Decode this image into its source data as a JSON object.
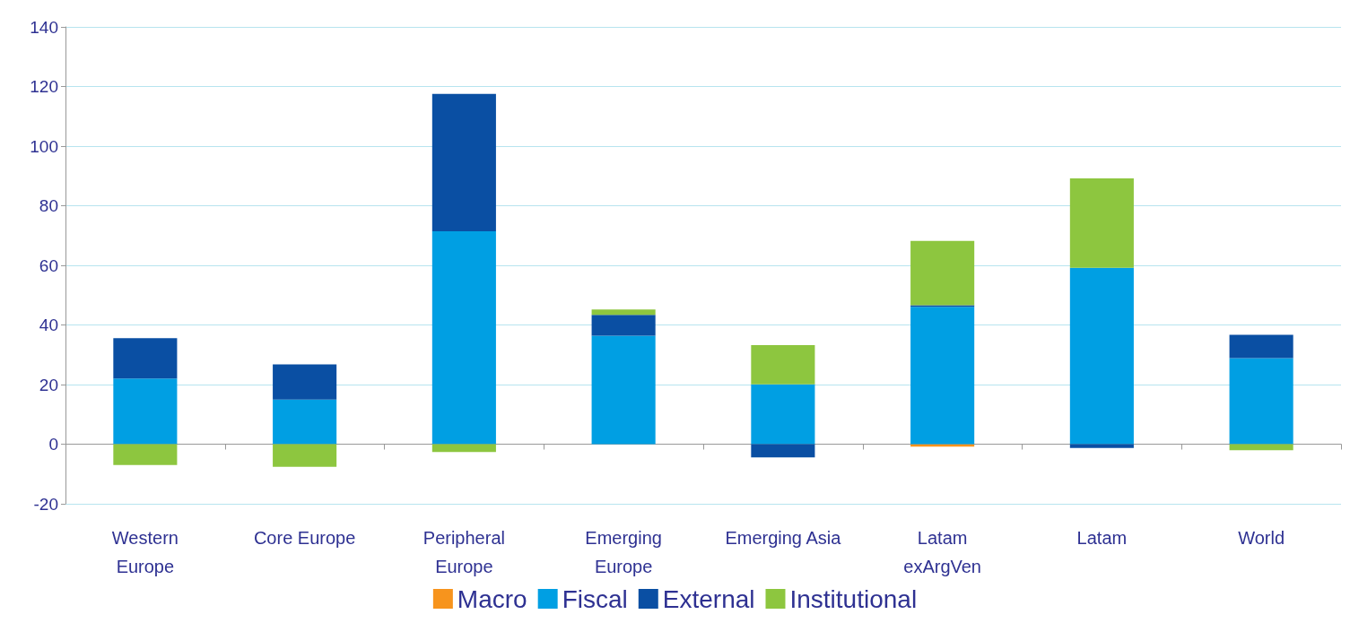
{
  "chart_data": {
    "type": "bar",
    "stacked": true,
    "categories": [
      "Western\nEurope",
      "Core Europe",
      "Peripheral\nEurope",
      "Emerging\nEurope",
      "Emerging Asia",
      "Latam\nexArgVen",
      "Latam",
      "World"
    ],
    "series": [
      {
        "name": "Macro",
        "color": "#f7941d",
        "values": [
          0,
          0,
          0,
          0,
          0,
          -0.8,
          0,
          0
        ]
      },
      {
        "name": "Fiscal",
        "color": "#009fe3",
        "values": [
          22,
          15,
          71.4,
          36.4,
          20.1,
          46.1,
          59.2,
          28.9
        ]
      },
      {
        "name": "External",
        "color": "#0a4fa3",
        "values": [
          13.6,
          11.8,
          46.1,
          7,
          -4.4,
          0.5,
          -1.3,
          7.8
        ]
      },
      {
        "name": "Institutional",
        "color": "#8dc63f",
        "values": [
          -7,
          -7.6,
          -2.6,
          1.8,
          13.1,
          21.6,
          30,
          -2
        ]
      }
    ],
    "ylim": [
      -20,
      140
    ],
    "yticks": [
      -20,
      0,
      20,
      40,
      60,
      80,
      100,
      120,
      140
    ],
    "grid": "y",
    "legend": "bottom"
  }
}
